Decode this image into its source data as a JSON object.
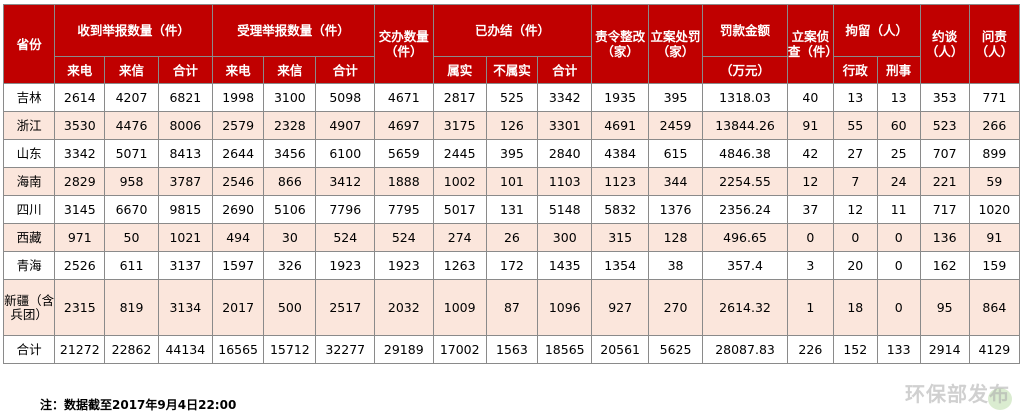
{
  "headers": {
    "province": "省份",
    "received": "收到举报数量（件）",
    "accepted": "受理举报数量（件）",
    "transferred": "交办数量（件）",
    "closed": "已办结（件）",
    "rectify": "责令整改（家）",
    "filed": "立案处罚（家）",
    "fine": "罚款金额",
    "fine_unit": "（万元）",
    "investigate": "立案侦查（件）",
    "detain": "拘留（人）",
    "interview": "约谈（人）",
    "account": "问责（人）",
    "sub_call": "来电",
    "sub_letter": "来信",
    "sub_total": "合计",
    "sub_true": "属实",
    "sub_false": "不属实",
    "sub_admin": "行政",
    "sub_crim": "刑事"
  },
  "rows": [
    {
      "p": "吉林",
      "c": [
        "2614",
        "4207",
        "6821",
        "1998",
        "3100",
        "5098",
        "4671",
        "2817",
        "525",
        "3342",
        "1935",
        "395",
        "1318.03",
        "40",
        "13",
        "13",
        "353",
        "771"
      ]
    },
    {
      "p": "浙江",
      "c": [
        "3530",
        "4476",
        "8006",
        "2579",
        "2328",
        "4907",
        "4697",
        "3175",
        "126",
        "3301",
        "4691",
        "2459",
        "13844.26",
        "91",
        "55",
        "60",
        "523",
        "266"
      ]
    },
    {
      "p": "山东",
      "c": [
        "3342",
        "5071",
        "8413",
        "2644",
        "3456",
        "6100",
        "5659",
        "2445",
        "395",
        "2840",
        "4384",
        "615",
        "4846.38",
        "42",
        "27",
        "25",
        "707",
        "899"
      ]
    },
    {
      "p": "海南",
      "c": [
        "2829",
        "958",
        "3787",
        "2546",
        "866",
        "3412",
        "1888",
        "1002",
        "101",
        "1103",
        "1123",
        "344",
        "2254.55",
        "12",
        "7",
        "24",
        "221",
        "59"
      ]
    },
    {
      "p": "四川",
      "c": [
        "3145",
        "6670",
        "9815",
        "2690",
        "5106",
        "7796",
        "7795",
        "5017",
        "131",
        "5148",
        "5832",
        "1376",
        "2356.24",
        "37",
        "12",
        "11",
        "717",
        "1020"
      ]
    },
    {
      "p": "西藏",
      "c": [
        "971",
        "50",
        "1021",
        "494",
        "30",
        "524",
        "524",
        "274",
        "26",
        "300",
        "315",
        "128",
        "496.65",
        "0",
        "0",
        "0",
        "136",
        "91"
      ]
    },
    {
      "p": "青海",
      "c": [
        "2526",
        "611",
        "3137",
        "1597",
        "326",
        "1923",
        "1923",
        "1263",
        "172",
        "1435",
        "1354",
        "38",
        "357.4",
        "3",
        "20",
        "0",
        "162",
        "159"
      ]
    },
    {
      "p": "新疆（含兵团）",
      "c": [
        "2315",
        "819",
        "3134",
        "2017",
        "500",
        "2517",
        "2032",
        "1009",
        "87",
        "1096",
        "927",
        "270",
        "2614.32",
        "1",
        "18",
        "0",
        "95",
        "864"
      ]
    },
    {
      "p": "合计",
      "c": [
        "21272",
        "22862",
        "44134",
        "16565",
        "15712",
        "32277",
        "29189",
        "17002",
        "1563",
        "18565",
        "20561",
        "5625",
        "28087.83",
        "226",
        "152",
        "133",
        "2914",
        "4129"
      ]
    }
  ],
  "footnote": "注：数据截至2017年9月4日22:00",
  "watermark": "环保部发布",
  "colors": {
    "header_bg": "#c00000",
    "shade_bg": "#fbe6dc"
  }
}
